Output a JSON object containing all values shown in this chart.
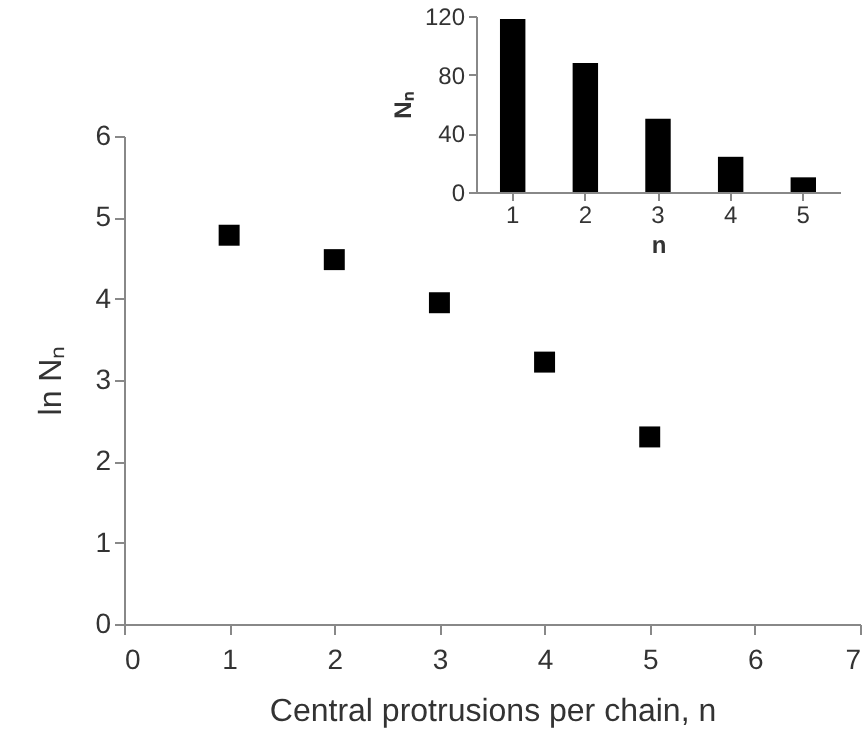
{
  "chart_data": [
    {
      "type": "scatter",
      "xlabel": "Central protrusions per chain, n",
      "ylabel": "ln Nₙ",
      "x": [
        1,
        2,
        3,
        4,
        5
      ],
      "values": [
        4.78,
        4.48,
        3.95,
        3.22,
        2.3
      ],
      "color": "#000000",
      "marker": "square",
      "xlim": [
        0,
        7
      ],
      "xticks": [
        0,
        1,
        2,
        3,
        4,
        5,
        6,
        7
      ],
      "ylim": [
        0,
        6
      ],
      "yticks": [
        0,
        1,
        2,
        3,
        4,
        5,
        6
      ]
    },
    {
      "type": "bar",
      "xlabel": "n",
      "ylabel": "Nₙ",
      "categories": [
        "1",
        "2",
        "3",
        "4",
        "5"
      ],
      "values": [
        118,
        88,
        50,
        24,
        10
      ],
      "color": "#000000",
      "ylim": [
        0,
        120
      ],
      "yticks": [
        0,
        40,
        80,
        120
      ]
    }
  ]
}
